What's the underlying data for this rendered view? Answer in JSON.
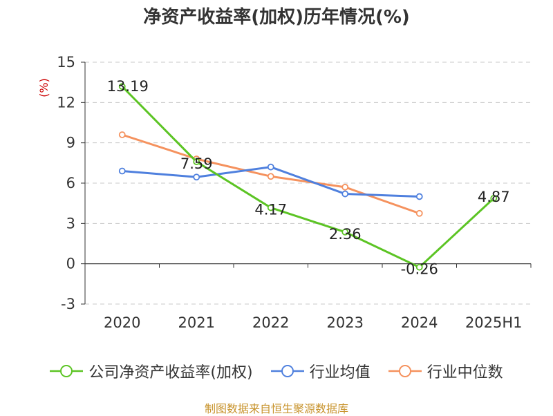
{
  "chart_data": {
    "type": "line",
    "title": "净资产收益率(加权)历年情况(%)",
    "ylabel": "(%)",
    "categories": [
      "2020",
      "2021",
      "2022",
      "2023",
      "2024",
      "2025H1"
    ],
    "ylim": [
      -3,
      15
    ],
    "yticks": [
      -3,
      0,
      3,
      6,
      9,
      12,
      15
    ],
    "grid": true,
    "legend_position": "bottom",
    "series": [
      {
        "name": "公司净资产收益率(加权)",
        "color": "#5cc424",
        "values": [
          13.19,
          7.59,
          4.17,
          2.36,
          -0.26,
          4.87
        ],
        "labels": [
          "13.19",
          "7.59",
          "4.17",
          "2.36",
          "-0.26",
          "4.87"
        ]
      },
      {
        "name": "行业均值",
        "color": "#4f80de",
        "values": [
          6.9,
          6.45,
          7.2,
          5.2,
          5.0,
          null
        ]
      },
      {
        "name": "行业中位数",
        "color": "#f5925e",
        "values": [
          9.6,
          7.8,
          6.5,
          5.7,
          3.75,
          null
        ]
      }
    ]
  },
  "source": "制图数据来自恒生聚源数据库"
}
